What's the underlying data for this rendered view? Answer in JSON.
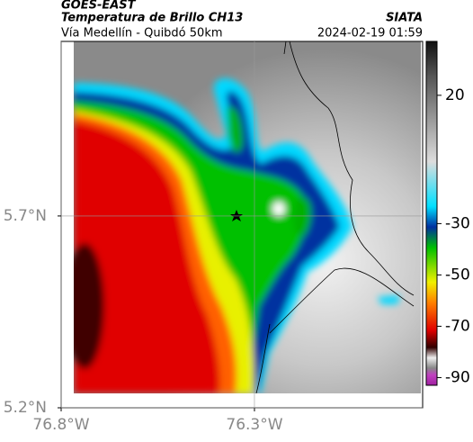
{
  "header": {
    "satellite": "GOES-EAST",
    "product": "Temperatura de Brillo CH13",
    "route": "Vía Medellín - Quibdó 50km",
    "source": "SIATA",
    "timestamp": "2024-02-19 01:59"
  },
  "map": {
    "xlim": [
      -76.8,
      -75.865
    ],
    "ylim": [
      5.2,
      6.155
    ],
    "xticks": [
      {
        "value": -76.8,
        "label": "76.8°W"
      },
      {
        "value": -76.3,
        "label": "76.3°W"
      }
    ],
    "yticks": [
      {
        "value": 5.2,
        "label": "5.2°N"
      },
      {
        "value": 5.7,
        "label": "5.7°N"
      }
    ],
    "grid": true
  },
  "colorbar": {
    "lim": [
      41,
      -93
    ],
    "ticks": [
      20,
      -30,
      -50,
      -70,
      -90
    ]
  }
}
